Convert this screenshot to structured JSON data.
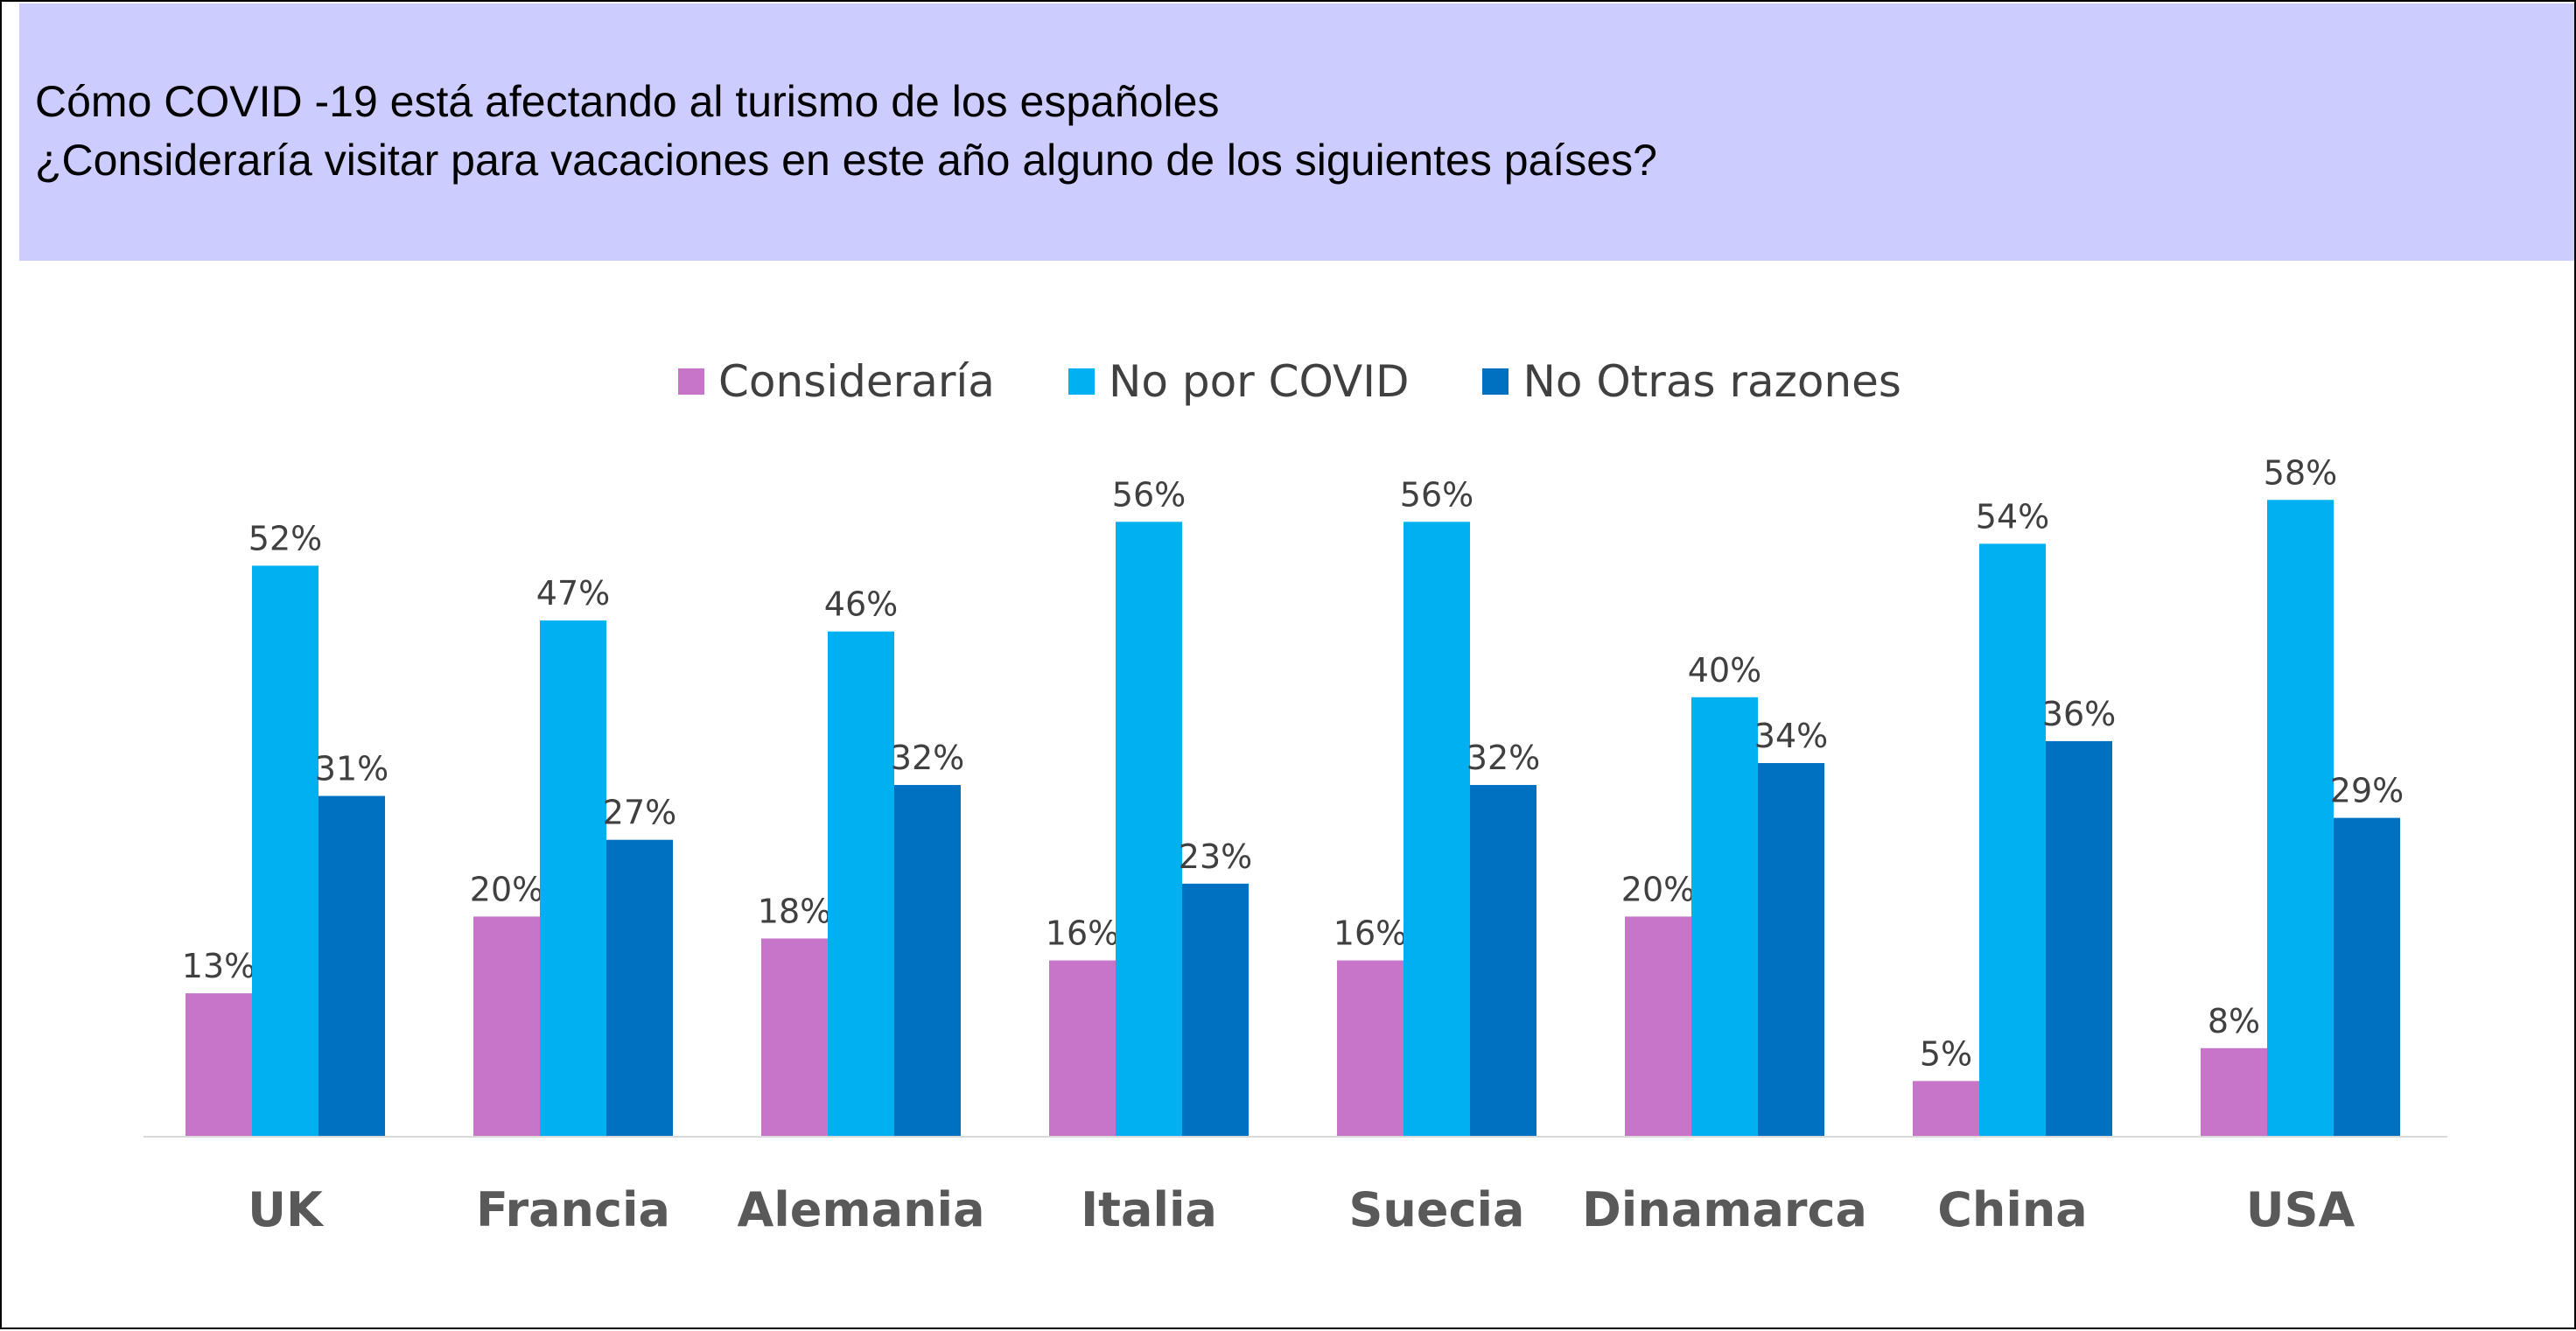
{
  "header": {
    "title": "Cómo COVID -19 está afectando al turismo de los españoles",
    "subtitle": "¿Consideraría visitar para vacaciones en este año alguno de los siguientes países?",
    "background": "#ccccff"
  },
  "chart_data": {
    "type": "bar",
    "categories": [
      "UK",
      "Francia",
      "Alemania",
      "Italia",
      "Suecia",
      "Dinamarca",
      "China",
      "USA"
    ],
    "series": [
      {
        "name": "Consideraría",
        "color": "#c675c8",
        "values": [
          13,
          20,
          18,
          16,
          16,
          20,
          5,
          8
        ],
        "labels": [
          "13%",
          "20%",
          "18%",
          "16%",
          "16%",
          "20%",
          "5%",
          "8%"
        ]
      },
      {
        "name": "No por COVID",
        "color": "#00b0f0",
        "values": [
          52,
          47,
          46,
          56,
          56,
          40,
          54,
          58
        ],
        "labels": [
          "52%",
          "47%",
          "46%",
          "56%",
          "56%",
          "40%",
          "54%",
          "58%"
        ]
      },
      {
        "name": "No Otras razones",
        "color": "#0070c0",
        "values": [
          31,
          27,
          32,
          23,
          32,
          34,
          36,
          29
        ],
        "labels": [
          "31%",
          "27%",
          "32%",
          "23%",
          "32%",
          "34%",
          "36%",
          "29%"
        ]
      }
    ],
    "value_unit": "%",
    "ylim": [
      0,
      60
    ],
    "grid": false,
    "legend_position": "top-center"
  }
}
